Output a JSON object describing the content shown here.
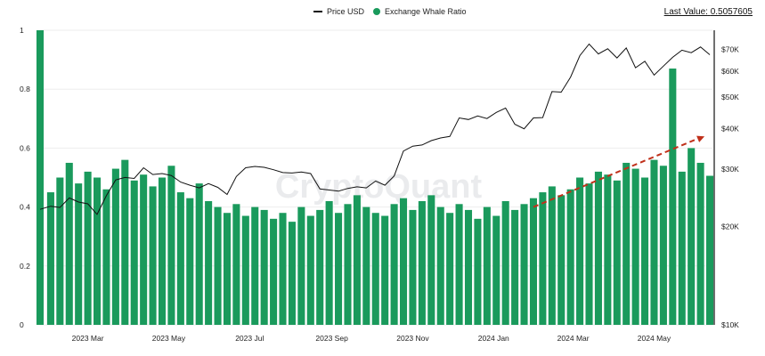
{
  "legend": {
    "price_label": "Price USD",
    "ratio_label": "Exchange Whale Ratio"
  },
  "last_value": {
    "label": "Last Value:",
    "value": "0.5057605"
  },
  "watermark": "CryptoQuant",
  "colors": {
    "bar": "#1a9a5c",
    "price_line": "#111111",
    "grid": "#eeeeee",
    "trend_arrow": "#c0301a"
  },
  "chart_data": {
    "type": "bar",
    "title": "",
    "series": [
      {
        "name": "Exchange Whale Ratio",
        "type": "bar",
        "axis": "left",
        "x": [
          "2023-01-24",
          "2023-02-01",
          "2023-02-08",
          "2023-02-15",
          "2023-02-22",
          "2023-03-01",
          "2023-03-08",
          "2023-03-15",
          "2023-03-22",
          "2023-03-29",
          "2023-04-05",
          "2023-04-12",
          "2023-04-19",
          "2023-04-26",
          "2023-05-03",
          "2023-05-10",
          "2023-05-17",
          "2023-05-24",
          "2023-05-31",
          "2023-06-07",
          "2023-06-14",
          "2023-06-21",
          "2023-06-28",
          "2023-07-05",
          "2023-07-12",
          "2023-07-19",
          "2023-07-26",
          "2023-08-02",
          "2023-08-09",
          "2023-08-16",
          "2023-08-23",
          "2023-08-30",
          "2023-09-06",
          "2023-09-13",
          "2023-09-20",
          "2023-09-27",
          "2023-10-04",
          "2023-10-11",
          "2023-10-18",
          "2023-10-25",
          "2023-11-01",
          "2023-11-08",
          "2023-11-15",
          "2023-11-22",
          "2023-11-29",
          "2023-12-06",
          "2023-12-13",
          "2023-12-20",
          "2023-12-27",
          "2024-01-03",
          "2024-01-10",
          "2024-01-17",
          "2024-01-24",
          "2024-01-31",
          "2024-02-07",
          "2024-02-14",
          "2024-02-21",
          "2024-02-28",
          "2024-03-06",
          "2024-03-13",
          "2024-03-20",
          "2024-03-27",
          "2024-04-03",
          "2024-04-10",
          "2024-04-17",
          "2024-04-24",
          "2024-05-01",
          "2024-05-08",
          "2024-05-15",
          "2024-05-22",
          "2024-05-29",
          "2024-06-05",
          "2024-06-12"
        ],
        "values": [
          1.0,
          0.45,
          0.5,
          0.55,
          0.48,
          0.52,
          0.5,
          0.46,
          0.53,
          0.56,
          0.49,
          0.51,
          0.47,
          0.5,
          0.54,
          0.45,
          0.43,
          0.48,
          0.42,
          0.4,
          0.38,
          0.41,
          0.37,
          0.4,
          0.39,
          0.36,
          0.38,
          0.35,
          0.4,
          0.37,
          0.39,
          0.42,
          0.38,
          0.41,
          0.44,
          0.4,
          0.38,
          0.37,
          0.41,
          0.43,
          0.39,
          0.42,
          0.44,
          0.4,
          0.38,
          0.41,
          0.39,
          0.36,
          0.4,
          0.37,
          0.42,
          0.39,
          0.41,
          0.43,
          0.45,
          0.47,
          0.44,
          0.46,
          0.5,
          0.48,
          0.52,
          0.51,
          0.49,
          0.55,
          0.53,
          0.5,
          0.56,
          0.54,
          0.87,
          0.52,
          0.6,
          0.55,
          0.506
        ]
      },
      {
        "name": "Price USD",
        "type": "line",
        "axis": "right",
        "x": [
          "2023-01-24",
          "2023-02-01",
          "2023-02-08",
          "2023-02-15",
          "2023-02-22",
          "2023-03-01",
          "2023-03-08",
          "2023-03-15",
          "2023-03-22",
          "2023-03-29",
          "2023-04-05",
          "2023-04-12",
          "2023-04-19",
          "2023-04-26",
          "2023-05-03",
          "2023-05-10",
          "2023-05-17",
          "2023-05-24",
          "2023-05-31",
          "2023-06-07",
          "2023-06-14",
          "2023-06-21",
          "2023-06-28",
          "2023-07-05",
          "2023-07-12",
          "2023-07-19",
          "2023-07-26",
          "2023-08-02",
          "2023-08-09",
          "2023-08-16",
          "2023-08-23",
          "2023-08-30",
          "2023-09-06",
          "2023-09-13",
          "2023-09-20",
          "2023-09-27",
          "2023-10-04",
          "2023-10-11",
          "2023-10-18",
          "2023-10-25",
          "2023-11-01",
          "2023-11-08",
          "2023-11-15",
          "2023-11-22",
          "2023-11-29",
          "2023-12-06",
          "2023-12-13",
          "2023-12-20",
          "2023-12-27",
          "2024-01-03",
          "2024-01-10",
          "2024-01-17",
          "2024-01-24",
          "2024-01-31",
          "2024-02-07",
          "2024-02-14",
          "2024-02-21",
          "2024-02-28",
          "2024-03-06",
          "2024-03-13",
          "2024-03-20",
          "2024-03-27",
          "2024-04-03",
          "2024-04-10",
          "2024-04-17",
          "2024-04-24",
          "2024-05-01",
          "2024-05-08",
          "2024-05-15",
          "2024-05-22",
          "2024-05-29",
          "2024-06-05",
          "2024-06-12"
        ],
        "values": [
          22600,
          23100,
          22900,
          24500,
          23800,
          23500,
          21800,
          24900,
          27800,
          28300,
          28100,
          30300,
          28900,
          29100,
          28700,
          27400,
          26800,
          26300,
          27100,
          26400,
          25100,
          28500,
          30300,
          30600,
          30400,
          29900,
          29300,
          29200,
          29400,
          29100,
          26100,
          25900,
          25700,
          26200,
          26500,
          26300,
          27600,
          26800,
          28600,
          34100,
          35300,
          35600,
          36700,
          37400,
          37800,
          43100,
          42600,
          43700,
          42900,
          44800,
          46200,
          41200,
          39900,
          43100,
          43200,
          51900,
          51700,
          57500,
          66900,
          72600,
          67700,
          70200,
          65800,
          70600,
          61400,
          64300,
          58300,
          62100,
          66100,
          69500,
          68300,
          71100,
          67300
        ]
      }
    ],
    "trend_arrow": {
      "from_date": "2024-01-31",
      "from_value": 0.4,
      "to_date": "2024-06-08",
      "to_value": 0.64
    },
    "left_axis": {
      "ylim": [
        0,
        1
      ],
      "ticks": [
        "0",
        "0.2",
        "0.4",
        "0.6",
        "0.8",
        "1"
      ]
    },
    "right_axis": {
      "scale": "log",
      "ylim": [
        10000,
        80000
      ],
      "ticks": [
        "$10K",
        "$20K",
        "$30K",
        "$40K",
        "$50K",
        "$60K",
        "$70K"
      ],
      "tick_values": [
        10000,
        20000,
        30000,
        40000,
        50000,
        60000,
        70000
      ]
    },
    "x_axis": {
      "range": [
        "2023-01-24",
        "2024-06-14"
      ],
      "tick_labels": [
        "2023 Mar",
        "2023 May",
        "2023 Jul",
        "2023 Sep",
        "2023 Nov",
        "2024 Jan",
        "2024 Mar",
        "2024 May"
      ],
      "tick_dates": [
        "2023-03-01",
        "2023-05-01",
        "2023-07-01",
        "2023-09-01",
        "2023-11-01",
        "2024-01-01",
        "2024-03-01",
        "2024-05-01"
      ]
    },
    "grid": true,
    "legend_position": "top-center"
  }
}
